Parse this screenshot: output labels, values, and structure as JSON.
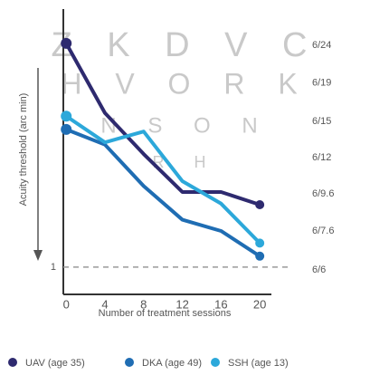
{
  "chart_data": {
    "type": "line",
    "x": [
      0,
      4,
      8,
      12,
      16,
      20
    ],
    "xlim": [
      -0.3,
      21.2
    ],
    "xticks": [
      0,
      4,
      8,
      12,
      16,
      20
    ],
    "xlabel": "Number of treatment sessions",
    "ylabel": "Acuity threshold (arc min)",
    "yscale": "log",
    "ylim": [
      0.845,
      4.92
    ],
    "yticks": [
      1
    ],
    "snellen_ticks": [
      {
        "value": 4,
        "label": "6/24"
      },
      {
        "value": 3.17,
        "label": "6/19"
      },
      {
        "value": 2.5,
        "label": "6/15"
      },
      {
        "value": 2,
        "label": "6/12"
      },
      {
        "value": 1.6,
        "label": "6/9.6"
      },
      {
        "value": 1.27,
        "label": "6/7.6"
      },
      {
        "value": 1,
        "label": "6/6"
      }
    ],
    "letter_rows": [
      "Z K D V C",
      "H V O R K",
      "N S O N",
      "R H"
    ],
    "series": [
      {
        "name": "UAV (age 35)",
        "color": "#2e2a6f",
        "values": [
          3.98,
          2.59,
          2.01,
          1.59,
          1.59,
          1.47
        ]
      },
      {
        "name": "DKA (age 49)",
        "color": "#1f6db3",
        "values": [
          2.34,
          2.13,
          1.65,
          1.34,
          1.25,
          1.07
        ]
      },
      {
        "name": "SSH (age 13)",
        "color": "#2ca8da",
        "values": [
          2.54,
          2.16,
          2.31,
          1.7,
          1.48,
          1.16
        ]
      }
    ]
  }
}
